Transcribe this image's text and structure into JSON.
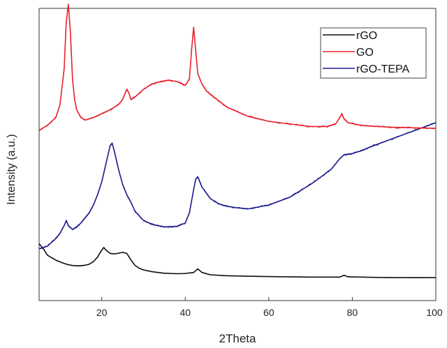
{
  "chart_data": {
    "type": "line",
    "xlabel": "2Theta",
    "ylabel": "Intensity (a.u.)",
    "xlim": [
      5,
      100
    ],
    "ylim": [
      0,
      100
    ],
    "x_ticks": [
      20,
      40,
      60,
      80,
      100
    ],
    "y_ticks": "none",
    "legend_position": "top-right",
    "grid": false,
    "series": [
      {
        "name": "rGO",
        "color": "#111111",
        "x": [
          5,
          6,
          7,
          8,
          9,
          10,
          11,
          12,
          13,
          14,
          15,
          16,
          17,
          18,
          19,
          20,
          20.5,
          21,
          22,
          23,
          24,
          25,
          26,
          27,
          28,
          29,
          30,
          32,
          35,
          38,
          40,
          42,
          43,
          44,
          46,
          50,
          60,
          70,
          77,
          78,
          79,
          85,
          90,
          100
        ],
        "y": [
          14,
          12,
          9.5,
          8.5,
          7.6,
          6.9,
          6.3,
          5.8,
          5.5,
          5.4,
          5.4,
          5.6,
          6.0,
          7.0,
          8.8,
          11.5,
          12.5,
          11.5,
          10.2,
          10.0,
          10.3,
          10.6,
          10.2,
          7.6,
          5.5,
          4.4,
          3.8,
          3.1,
          2.5,
          2.3,
          2.4,
          2.8,
          4.2,
          2.8,
          1.9,
          1.5,
          1.2,
          1.0,
          1.0,
          1.7,
          1.1,
          0.9,
          0.8,
          0.8
        ]
      },
      {
        "name": "GO",
        "color": "#e8202a",
        "x": [
          5,
          7,
          9,
          10,
          11,
          11.5,
          12,
          12.5,
          13,
          13.5,
          14,
          15,
          16,
          18,
          20,
          22,
          24,
          25,
          25.5,
          26,
          26.5,
          27,
          28,
          30,
          32,
          34,
          36,
          38,
          40,
          41,
          41.5,
          42,
          42.5,
          43,
          44,
          45,
          46,
          48,
          50,
          55,
          60,
          65,
          70,
          74,
          76,
          77,
          77.5,
          78,
          79,
          82,
          85,
          90,
          95,
          100
        ],
        "y": [
          58,
          60,
          63,
          68,
          82,
          100,
          107,
          96,
          78,
          70,
          66,
          63,
          62,
          63,
          64.5,
          66,
          68,
          70,
          72,
          74,
          72.5,
          70,
          71,
          74,
          76,
          77,
          77.5,
          77,
          75.5,
          78,
          89,
          98,
          89,
          80,
          76,
          73.5,
          72,
          69.5,
          67,
          63.5,
          61.5,
          60.5,
          59.5,
          59.5,
          60.5,
          63,
          64.5,
          62.5,
          61,
          60,
          59.6,
          59.2,
          59,
          58.8
        ]
      },
      {
        "name": "rGO-TEPA",
        "color": "#1a1a8c",
        "x": [
          5,
          7,
          9,
          10,
          11,
          11.5,
          12,
          13,
          14,
          15,
          16,
          17,
          18,
          19,
          20,
          21,
          22,
          22.5,
          23,
          24,
          25,
          26,
          27,
          28,
          30,
          32,
          35,
          38,
          40,
          41,
          42,
          42.5,
          43,
          44,
          46,
          48,
          50,
          52,
          55,
          60,
          65,
          70,
          73,
          75,
          77,
          78,
          80,
          82,
          85,
          90,
          95,
          100
        ],
        "y": [
          12,
          13,
          16,
          18,
          21,
          23,
          21,
          19.5,
          20.5,
          22,
          24,
          26,
          29,
          33,
          38,
          45,
          52,
          53,
          50,
          43,
          37,
          33,
          30,
          26.5,
          23,
          21.5,
          20.5,
          20.7,
          22,
          26,
          35,
          39,
          40,
          36,
          31.5,
          29.5,
          28.5,
          28,
          27.5,
          29,
          32,
          37,
          40.5,
          43,
          47,
          48.5,
          49,
          50,
          52,
          55,
          58,
          61
        ]
      }
    ]
  }
}
